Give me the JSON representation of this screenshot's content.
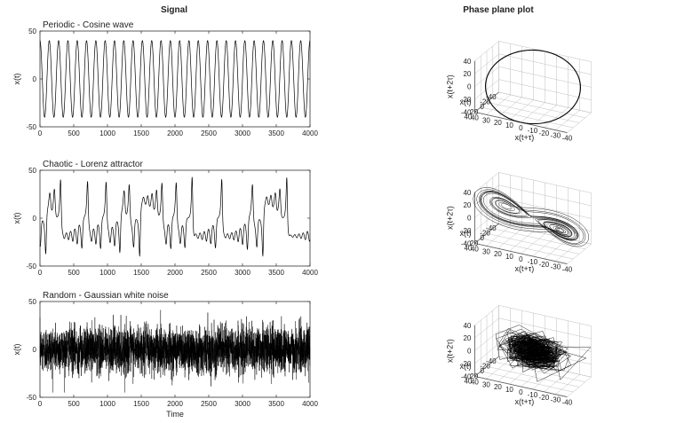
{
  "figure": {
    "left_title": "Signal",
    "right_title": "Phase plane plot"
  },
  "chart_data": [
    {
      "type": "line",
      "subtitle": "Periodic - Cosine wave",
      "ylabel": "x(t)",
      "xlabel": "",
      "xlim": [
        0,
        4000
      ],
      "ylim": [
        -50,
        50
      ],
      "xticks": [
        0,
        500,
        1000,
        1500,
        2000,
        2500,
        3000,
        3500,
        4000
      ],
      "yticks": [
        -50,
        0,
        50
      ],
      "signal": {
        "kind": "cosine",
        "amplitude": 40,
        "cycles": 29,
        "samples": 4000
      }
    },
    {
      "type": "line",
      "subtitle": "Chaotic - Lorenz attractor",
      "ylabel": "x(t)",
      "xlabel": "",
      "xlim": [
        0,
        4000
      ],
      "ylim": [
        -50,
        50
      ],
      "xticks": [
        0,
        500,
        1000,
        1500,
        2000,
        2500,
        3000,
        3500,
        4000
      ],
      "yticks": [
        -50,
        0,
        50
      ],
      "signal": {
        "kind": "lorenz",
        "samples": 4000,
        "scale": 2.2
      }
    },
    {
      "type": "line",
      "subtitle": "Random - Gaussian white noise",
      "ylabel": "x(t)",
      "xlabel": "Time",
      "xlim": [
        0,
        4000
      ],
      "ylim": [
        -50,
        50
      ],
      "xticks": [
        0,
        500,
        1000,
        1500,
        2000,
        2500,
        3000,
        3500,
        4000
      ],
      "yticks": [
        -50,
        0,
        50
      ],
      "signal": {
        "kind": "gaussian",
        "sigma": 12,
        "samples": 4000
      }
    },
    {
      "type": "line",
      "subtitle": "",
      "xlabel": "x(t+τ)",
      "ylabel": "x(t)",
      "zlabel": "x(t+2τ)",
      "xlim": [
        -40,
        40
      ],
      "ylim": [
        -40,
        40
      ],
      "zlim": [
        -40,
        40
      ],
      "xticks": [
        -40,
        -30,
        -20,
        -10,
        0,
        10,
        20,
        30,
        40
      ],
      "yticks": [
        -40,
        -20,
        0,
        20,
        40
      ],
      "zticks": [
        -40,
        -20,
        0,
        20,
        40
      ],
      "phase": {
        "source": 0,
        "delay": 35
      }
    },
    {
      "type": "line",
      "subtitle": "",
      "xlabel": "x(t+τ)",
      "ylabel": "x(t)",
      "zlabel": "x(t+2τ)",
      "xlim": [
        -40,
        40
      ],
      "ylim": [
        -40,
        40
      ],
      "zlim": [
        -40,
        40
      ],
      "xticks": [
        -40,
        -30,
        -20,
        -10,
        0,
        10,
        20,
        30,
        40
      ],
      "yticks": [
        -40,
        -20,
        0,
        20,
        40
      ],
      "zticks": [
        -40,
        -20,
        0,
        20,
        40
      ],
      "phase": {
        "source": 1,
        "delay": 6
      }
    },
    {
      "type": "line",
      "subtitle": "",
      "xlabel": "x(t+τ)",
      "ylabel": "x(t)",
      "zlabel": "x(t+2τ)",
      "xlim": [
        -40,
        40
      ],
      "ylim": [
        -40,
        40
      ],
      "zlim": [
        -40,
        40
      ],
      "xticks": [
        -40,
        -30,
        -20,
        -10,
        0,
        10,
        20,
        30,
        40
      ],
      "yticks": [
        -40,
        -20,
        0,
        20,
        40
      ],
      "zticks": [
        -40,
        -20,
        0,
        20,
        40
      ],
      "phase": {
        "source": 2,
        "delay": 1
      }
    }
  ]
}
